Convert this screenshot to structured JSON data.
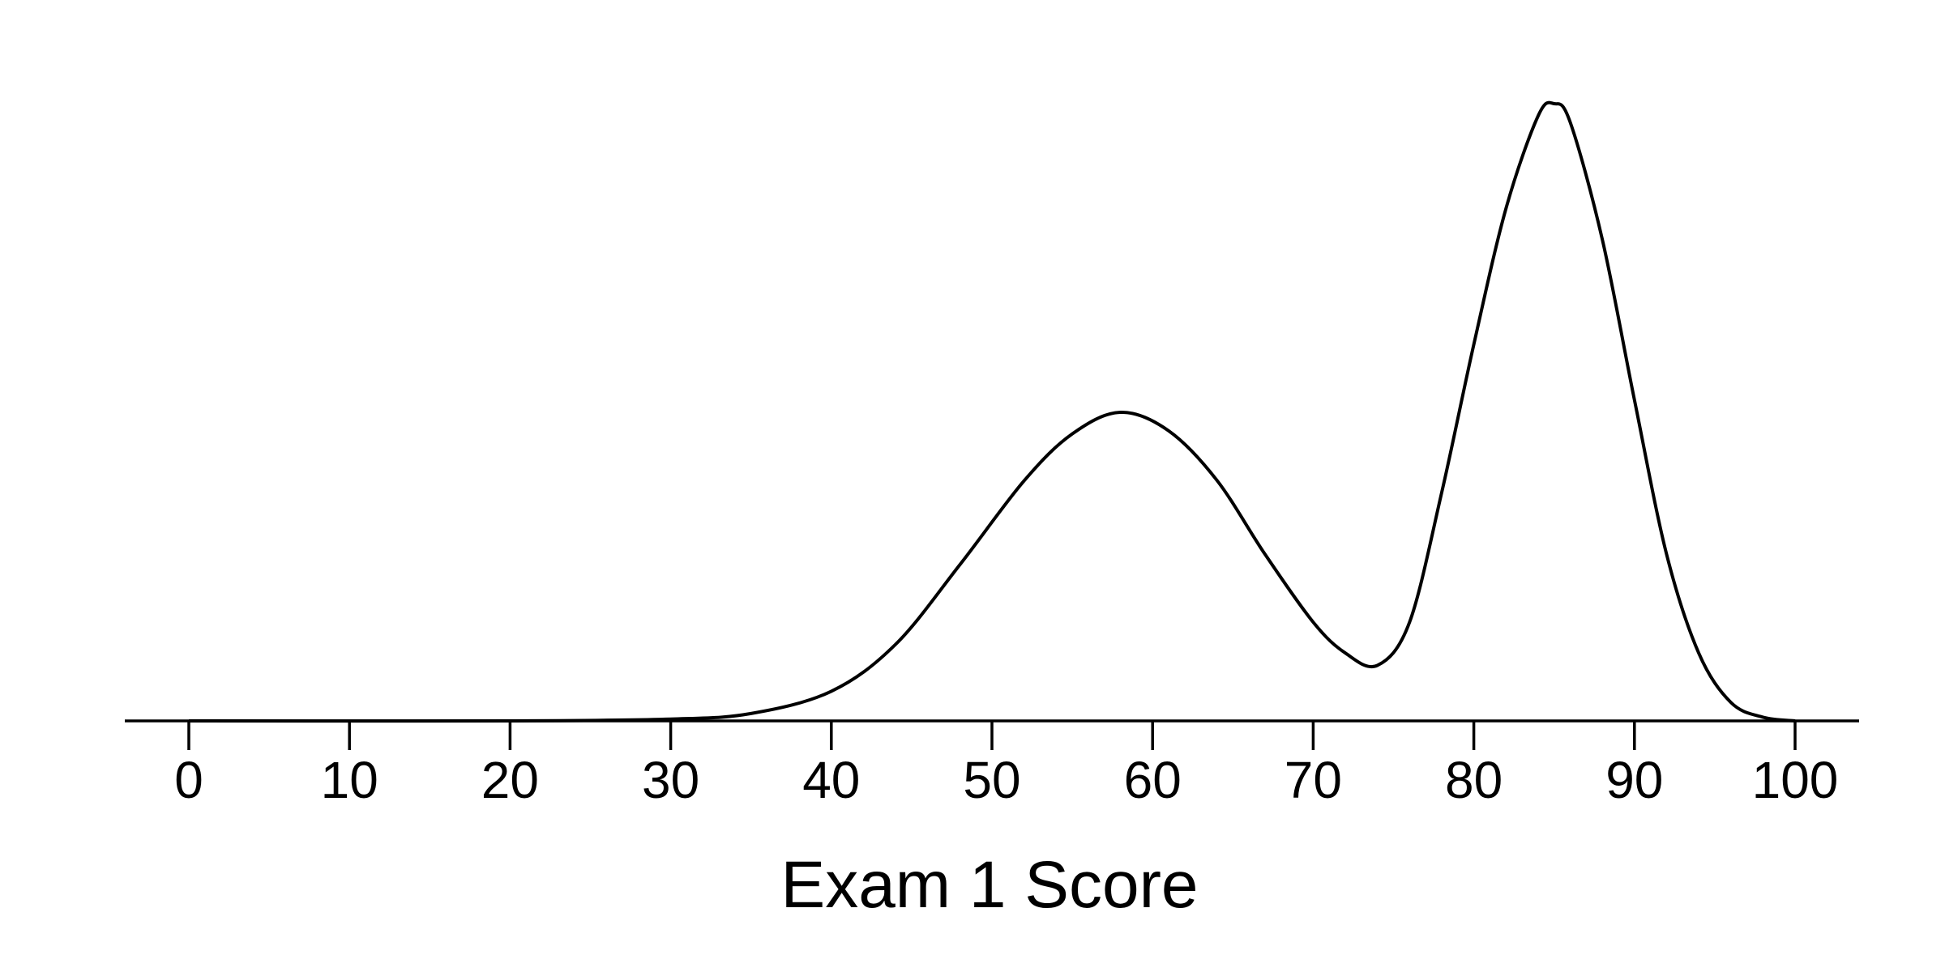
{
  "chart_data": {
    "type": "line",
    "title": "",
    "xlabel": "Exam 1 Score",
    "ylabel": "",
    "xlim": [
      0,
      100
    ],
    "ylim": [
      0,
      1
    ],
    "grid": false,
    "legend": "none",
    "x_ticks": [
      0,
      10,
      20,
      30,
      40,
      50,
      60,
      70,
      80,
      90,
      100
    ],
    "series": [
      {
        "color": "#000000",
        "x": [
          0,
          20,
          30,
          35,
          40,
          44,
          48,
          52,
          55,
          58,
          61,
          64,
          67,
          70,
          72,
          74,
          76,
          78,
          80,
          82,
          84,
          85,
          86,
          88,
          90,
          92,
          94,
          96,
          98,
          100
        ],
        "y": [
          0.0,
          0.0,
          0.003,
          0.012,
          0.048,
          0.124,
          0.253,
          0.389,
          0.465,
          0.5,
          0.47,
          0.39,
          0.27,
          0.16,
          0.11,
          0.09,
          0.16,
          0.37,
          0.61,
          0.83,
          0.98,
          1.0,
          0.97,
          0.78,
          0.52,
          0.27,
          0.11,
          0.03,
          0.006,
          0.0
        ]
      }
    ]
  }
}
